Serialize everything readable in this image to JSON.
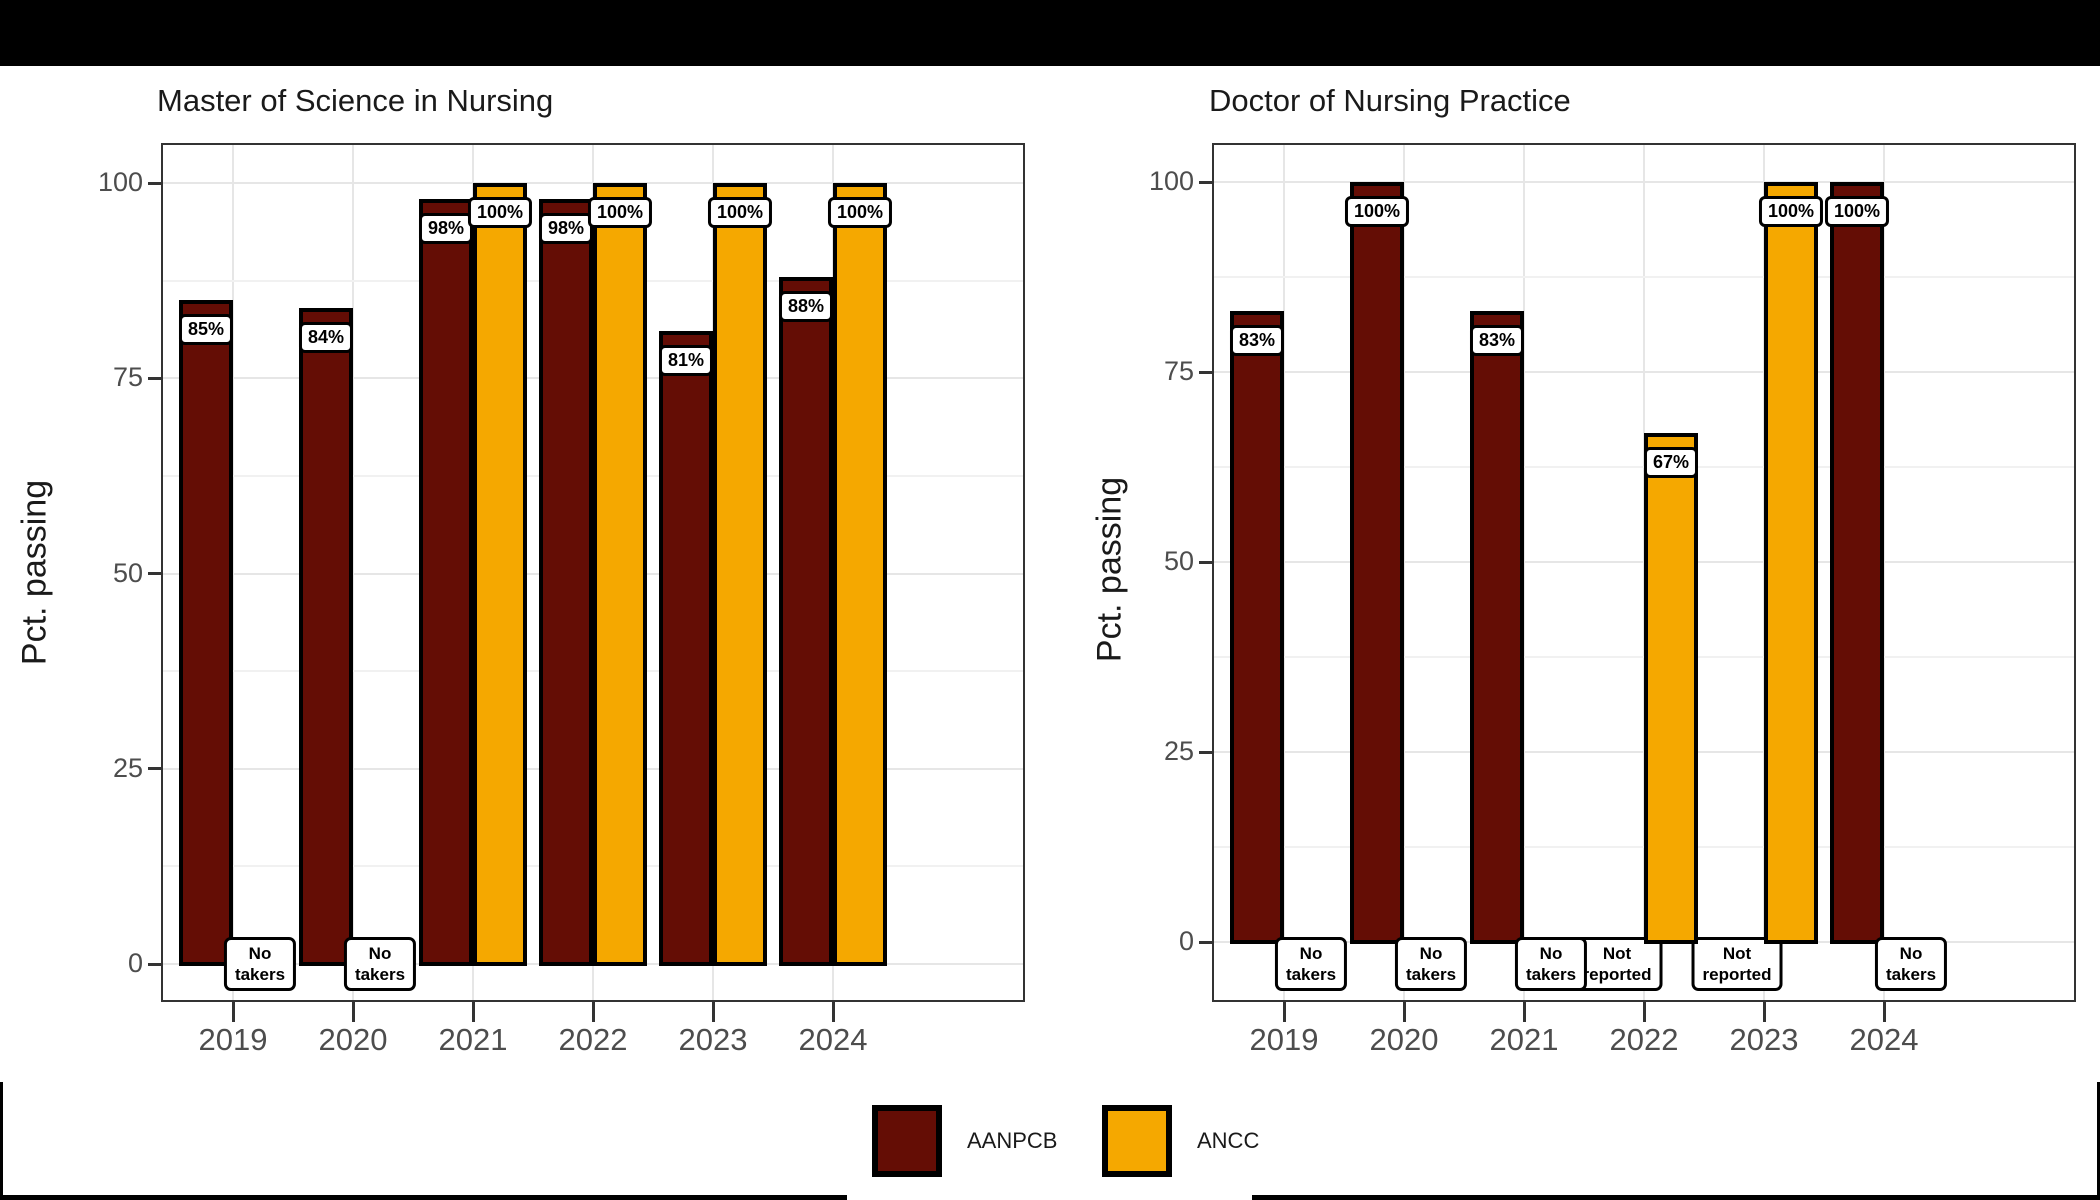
{
  "page": {
    "top_bar_color": "#000000",
    "background": "#FFFFFF"
  },
  "legend": {
    "items": [
      {
        "label": "AANPCB",
        "color": "#640D05"
      },
      {
        "label": "ANCC",
        "color": "#F5A800"
      }
    ]
  },
  "chart_data": [
    {
      "type": "bar",
      "title": "Master of Science in Nursing",
      "ylabel": "Pct. passing",
      "categories": [
        "2019",
        "2020",
        "2021",
        "2022",
        "2023",
        "2024"
      ],
      "yticks": [
        "0",
        "25",
        "50",
        "75",
        "100"
      ],
      "ylim": [
        0,
        100
      ],
      "grid": "on",
      "legend_position": "bottom",
      "series": [
        {
          "name": "AANPCB",
          "values": [
            85,
            84,
            98,
            98,
            81,
            88
          ],
          "labels": [
            "85%",
            "84%",
            "98%",
            "98%",
            "81%",
            "88%"
          ],
          "notes": [
            null,
            null,
            null,
            null,
            null,
            null
          ]
        },
        {
          "name": "ANCC",
          "values": [
            null,
            null,
            100,
            100,
            100,
            100
          ],
          "labels": [
            null,
            null,
            "100%",
            "100%",
            "100%",
            "100%"
          ],
          "notes": [
            "No takers",
            "No takers",
            null,
            null,
            null,
            null
          ]
        }
      ]
    },
    {
      "type": "bar",
      "title": "Doctor of Nursing Practice",
      "ylabel": "Pct. passing",
      "categories": [
        "2019",
        "2020",
        "2021",
        "2022",
        "2023",
        "2024"
      ],
      "yticks": [
        "0",
        "25",
        "50",
        "75",
        "100"
      ],
      "ylim": [
        0,
        100
      ],
      "grid": "on",
      "legend_position": "bottom",
      "series": [
        {
          "name": "AANPCB",
          "values": [
            83,
            100,
            83,
            null,
            null,
            100
          ],
          "labels": [
            "83%",
            "100%",
            "83%",
            null,
            null,
            "100%"
          ],
          "notes": [
            null,
            null,
            null,
            "Not reported",
            "Not reported",
            null
          ]
        },
        {
          "name": "ANCC",
          "values": [
            null,
            null,
            null,
            67,
            100,
            null
          ],
          "labels": [
            null,
            null,
            null,
            "67%",
            "100%",
            null
          ],
          "notes": [
            "No takers",
            "No takers",
            "No takers",
            null,
            null,
            "No takers"
          ]
        }
      ]
    }
  ]
}
